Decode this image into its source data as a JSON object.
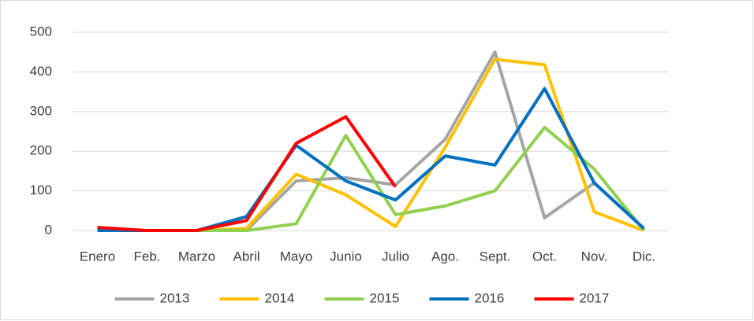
{
  "chart_data": {
    "type": "line",
    "categories": [
      "Enero",
      "Feb.",
      "Marzo",
      "Abril",
      "Mayo",
      "Junio",
      "Julio",
      "Ago.",
      "Sept.",
      "Oct.",
      "Nov.",
      "Dic."
    ],
    "ylim": [
      0,
      500
    ],
    "yticks": [
      0,
      100,
      200,
      300,
      400,
      500
    ],
    "grid": true,
    "legend": "bottom",
    "series": [
      {
        "name": "2013",
        "color": "#a5a5a5",
        "values": [
          0,
          0,
          0,
          0,
          125,
          133,
          115,
          230,
          450,
          32,
          120,
          5
        ]
      },
      {
        "name": "2014",
        "color": "#ffc000",
        "values": [
          0,
          0,
          0,
          5,
          142,
          90,
          10,
          210,
          432,
          418,
          47,
          0
        ]
      },
      {
        "name": "2015",
        "color": "#92d050",
        "values": [
          0,
          0,
          0,
          0,
          17,
          240,
          40,
          62,
          100,
          260,
          155,
          0
        ]
      },
      {
        "name": "2016",
        "color": "#0070c0",
        "values": [
          0,
          0,
          0,
          35,
          215,
          125,
          77,
          188,
          165,
          358,
          120,
          5
        ]
      },
      {
        "name": "2017",
        "color": "#ff0000",
        "values": [
          8,
          0,
          0,
          25,
          220,
          287,
          110,
          null,
          null,
          null,
          null,
          null
        ]
      }
    ]
  }
}
